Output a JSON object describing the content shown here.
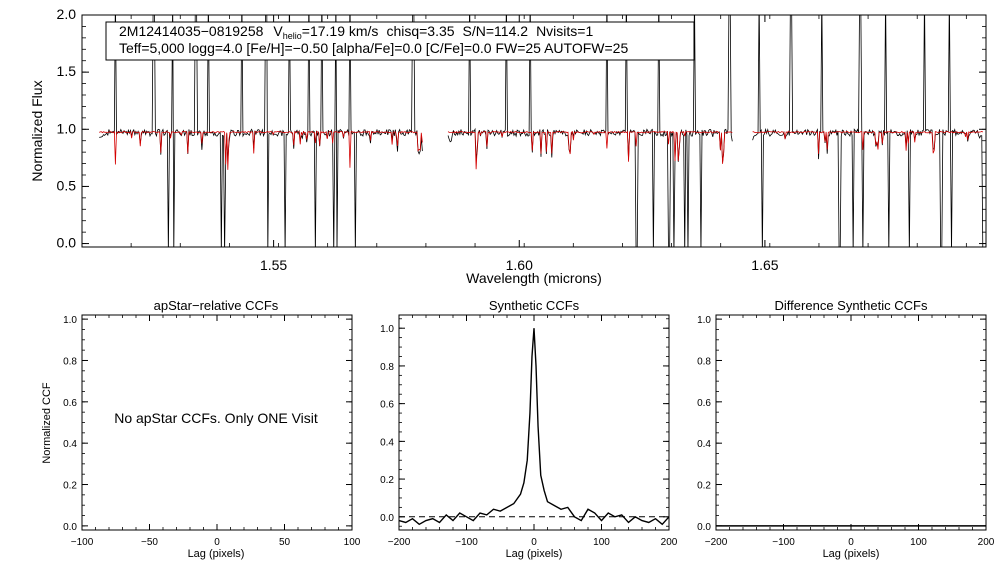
{
  "chart_data": [
    {
      "type": "line",
      "id": "spectrum",
      "xlabel": "Wavelength (microns)",
      "ylabel": "Normalized Flux",
      "xlim": [
        1.511,
        1.695
      ],
      "ylim": [
        -0.03,
        2.0
      ],
      "xticks": [
        1.55,
        1.6,
        1.65
      ],
      "xtick_labels": [
        "1.55",
        "1.60",
        "1.65"
      ],
      "yticks": [
        0.0,
        0.5,
        1.0,
        1.5,
        2.0
      ],
      "ytick_labels": [
        "0.0",
        "0.5",
        "1.0",
        "1.5",
        "2.0"
      ],
      "annotation": {
        "star": "2M12414035−0819258",
        "vhelio_prefix": "V",
        "vhelio_sub": "helio",
        "vhelio_value": "=17.19 km/s",
        "chisq": "chisq=3.35",
        "snr": "S/N=114.2",
        "nvisits": "Nvisits=1",
        "params": "Teff=5,000 logg=4.0 [Fe/H]=−0.50 [alpha/Fe]=0.0 [C/Fe]=0.0 FW=25 AUTOFW=25"
      },
      "chips": [
        [
          1.5145,
          1.5805
        ],
        [
          1.5855,
          1.6435
        ],
        [
          1.6475,
          1.6945
        ]
      ],
      "series": [
        {
          "name": "observed spectrum",
          "color": "#000000",
          "continuum": 0.97,
          "noise": 0.03,
          "spikes_up": [
            1.5178,
            1.5256,
            1.5295,
            1.5342,
            1.5368,
            1.5436,
            1.5485,
            1.5532,
            1.5571,
            1.5598,
            1.5626,
            1.5656,
            1.5784,
            1.5899,
            1.5973,
            1.6022,
            1.6179,
            1.6218,
            1.6284,
            1.6356,
            1.6428,
            1.6488,
            1.6553,
            1.6616,
            1.6694,
            1.6746,
            1.6825,
            1.6876
          ],
          "dips_down": [
            1.5286,
            1.5297,
            1.5393,
            1.5401,
            1.5488,
            1.5523,
            1.5585,
            1.5622,
            1.5629,
            1.5667,
            1.581,
            1.6239,
            1.6273,
            1.6305,
            1.6315,
            1.6336,
            1.6344,
            1.637,
            1.6494,
            1.6652,
            1.6679,
            1.6699,
            1.6753,
            1.6794,
            1.6859,
            1.688,
            1.6944
          ]
        },
        {
          "name": "synthetic model",
          "color": "#d40000",
          "continuum": 0.975,
          "line_depth": 0.2
        }
      ]
    },
    {
      "type": "line",
      "id": "apstar_ccf",
      "title": "apStar−relative CCFs",
      "xlabel": "Lag (pixels)",
      "ylabel": "Normalized CCF",
      "xlim": [
        -100,
        100
      ],
      "ylim": [
        -0.02,
        1.02
      ],
      "xticks": [
        -100,
        -50,
        0,
        50,
        100
      ],
      "xtick_labels": [
        "−100",
        "−50",
        "0",
        "50",
        "100"
      ],
      "yticks": [
        0.0,
        0.2,
        0.4,
        0.6,
        0.8,
        1.0
      ],
      "ytick_labels": [
        "0.0",
        "0.2",
        "0.4",
        "0.6",
        "0.8",
        "1.0"
      ],
      "message": "No apStar CCFs.  Only ONE Visit",
      "series": []
    },
    {
      "type": "line",
      "id": "synthetic_ccf",
      "title": "Synthetic CCFs",
      "xlabel": "Lag (pixels)",
      "ylabel": "",
      "xlim": [
        -200,
        200
      ],
      "ylim": [
        -0.07,
        1.07
      ],
      "xticks": [
        -200,
        -100,
        0,
        100,
        200
      ],
      "xtick_labels": [
        "−200",
        "−100",
        "0",
        "100",
        "200"
      ],
      "yticks": [
        0.0,
        0.2,
        0.4,
        0.6,
        0.8,
        1.0
      ],
      "ytick_labels": [
        "0.0",
        "0.2",
        "0.4",
        "0.6",
        "0.8",
        "1.0"
      ],
      "zero_line": 0.0,
      "series": [
        {
          "name": "CCF",
          "color": "#000000",
          "x": [
            -200,
            -190,
            -180,
            -170,
            -160,
            -150,
            -140,
            -130,
            -120,
            -110,
            -100,
            -90,
            -80,
            -70,
            -60,
            -50,
            -40,
            -30,
            -20,
            -15,
            -10,
            -6,
            -3,
            0,
            3,
            6,
            10,
            15,
            20,
            30,
            40,
            50,
            60,
            70,
            80,
            90,
            100,
            110,
            120,
            130,
            140,
            150,
            160,
            170,
            180,
            190,
            200
          ],
          "y": [
            -0.02,
            -0.03,
            -0.01,
            -0.04,
            -0.02,
            -0.01,
            -0.03,
            0.01,
            -0.02,
            0.02,
            0.0,
            -0.02,
            0.02,
            0.01,
            0.04,
            0.03,
            0.05,
            0.07,
            0.12,
            0.18,
            0.3,
            0.55,
            0.85,
            1.0,
            0.8,
            0.48,
            0.22,
            0.14,
            0.08,
            0.06,
            0.04,
            0.05,
            0.0,
            -0.02,
            0.04,
            0.02,
            -0.02,
            0.02,
            0.0,
            0.01,
            -0.03,
            0.0,
            -0.02,
            -0.03,
            -0.01,
            -0.04,
            0.0
          ]
        }
      ]
    },
    {
      "type": "line",
      "id": "difference_ccf",
      "title": "Difference Synthetic CCFs",
      "xlabel": "Lag (pixels)",
      "ylabel": "",
      "xlim": [
        -200,
        200
      ],
      "ylim": [
        -0.02,
        1.02
      ],
      "xticks": [
        -200,
        -100,
        0,
        100,
        200
      ],
      "xtick_labels": [
        "−200",
        "−100",
        "0",
        "100",
        "200"
      ],
      "yticks": [
        0.0,
        0.2,
        0.4,
        0.6,
        0.8,
        1.0
      ],
      "ytick_labels": [
        "0.0",
        "0.2",
        "0.4",
        "0.6",
        "0.8",
        "1.0"
      ],
      "series": [
        {
          "name": "difference CCF",
          "color": "#000000",
          "x": [
            -200,
            200
          ],
          "y": [
            0.0,
            0.0
          ]
        }
      ]
    }
  ]
}
